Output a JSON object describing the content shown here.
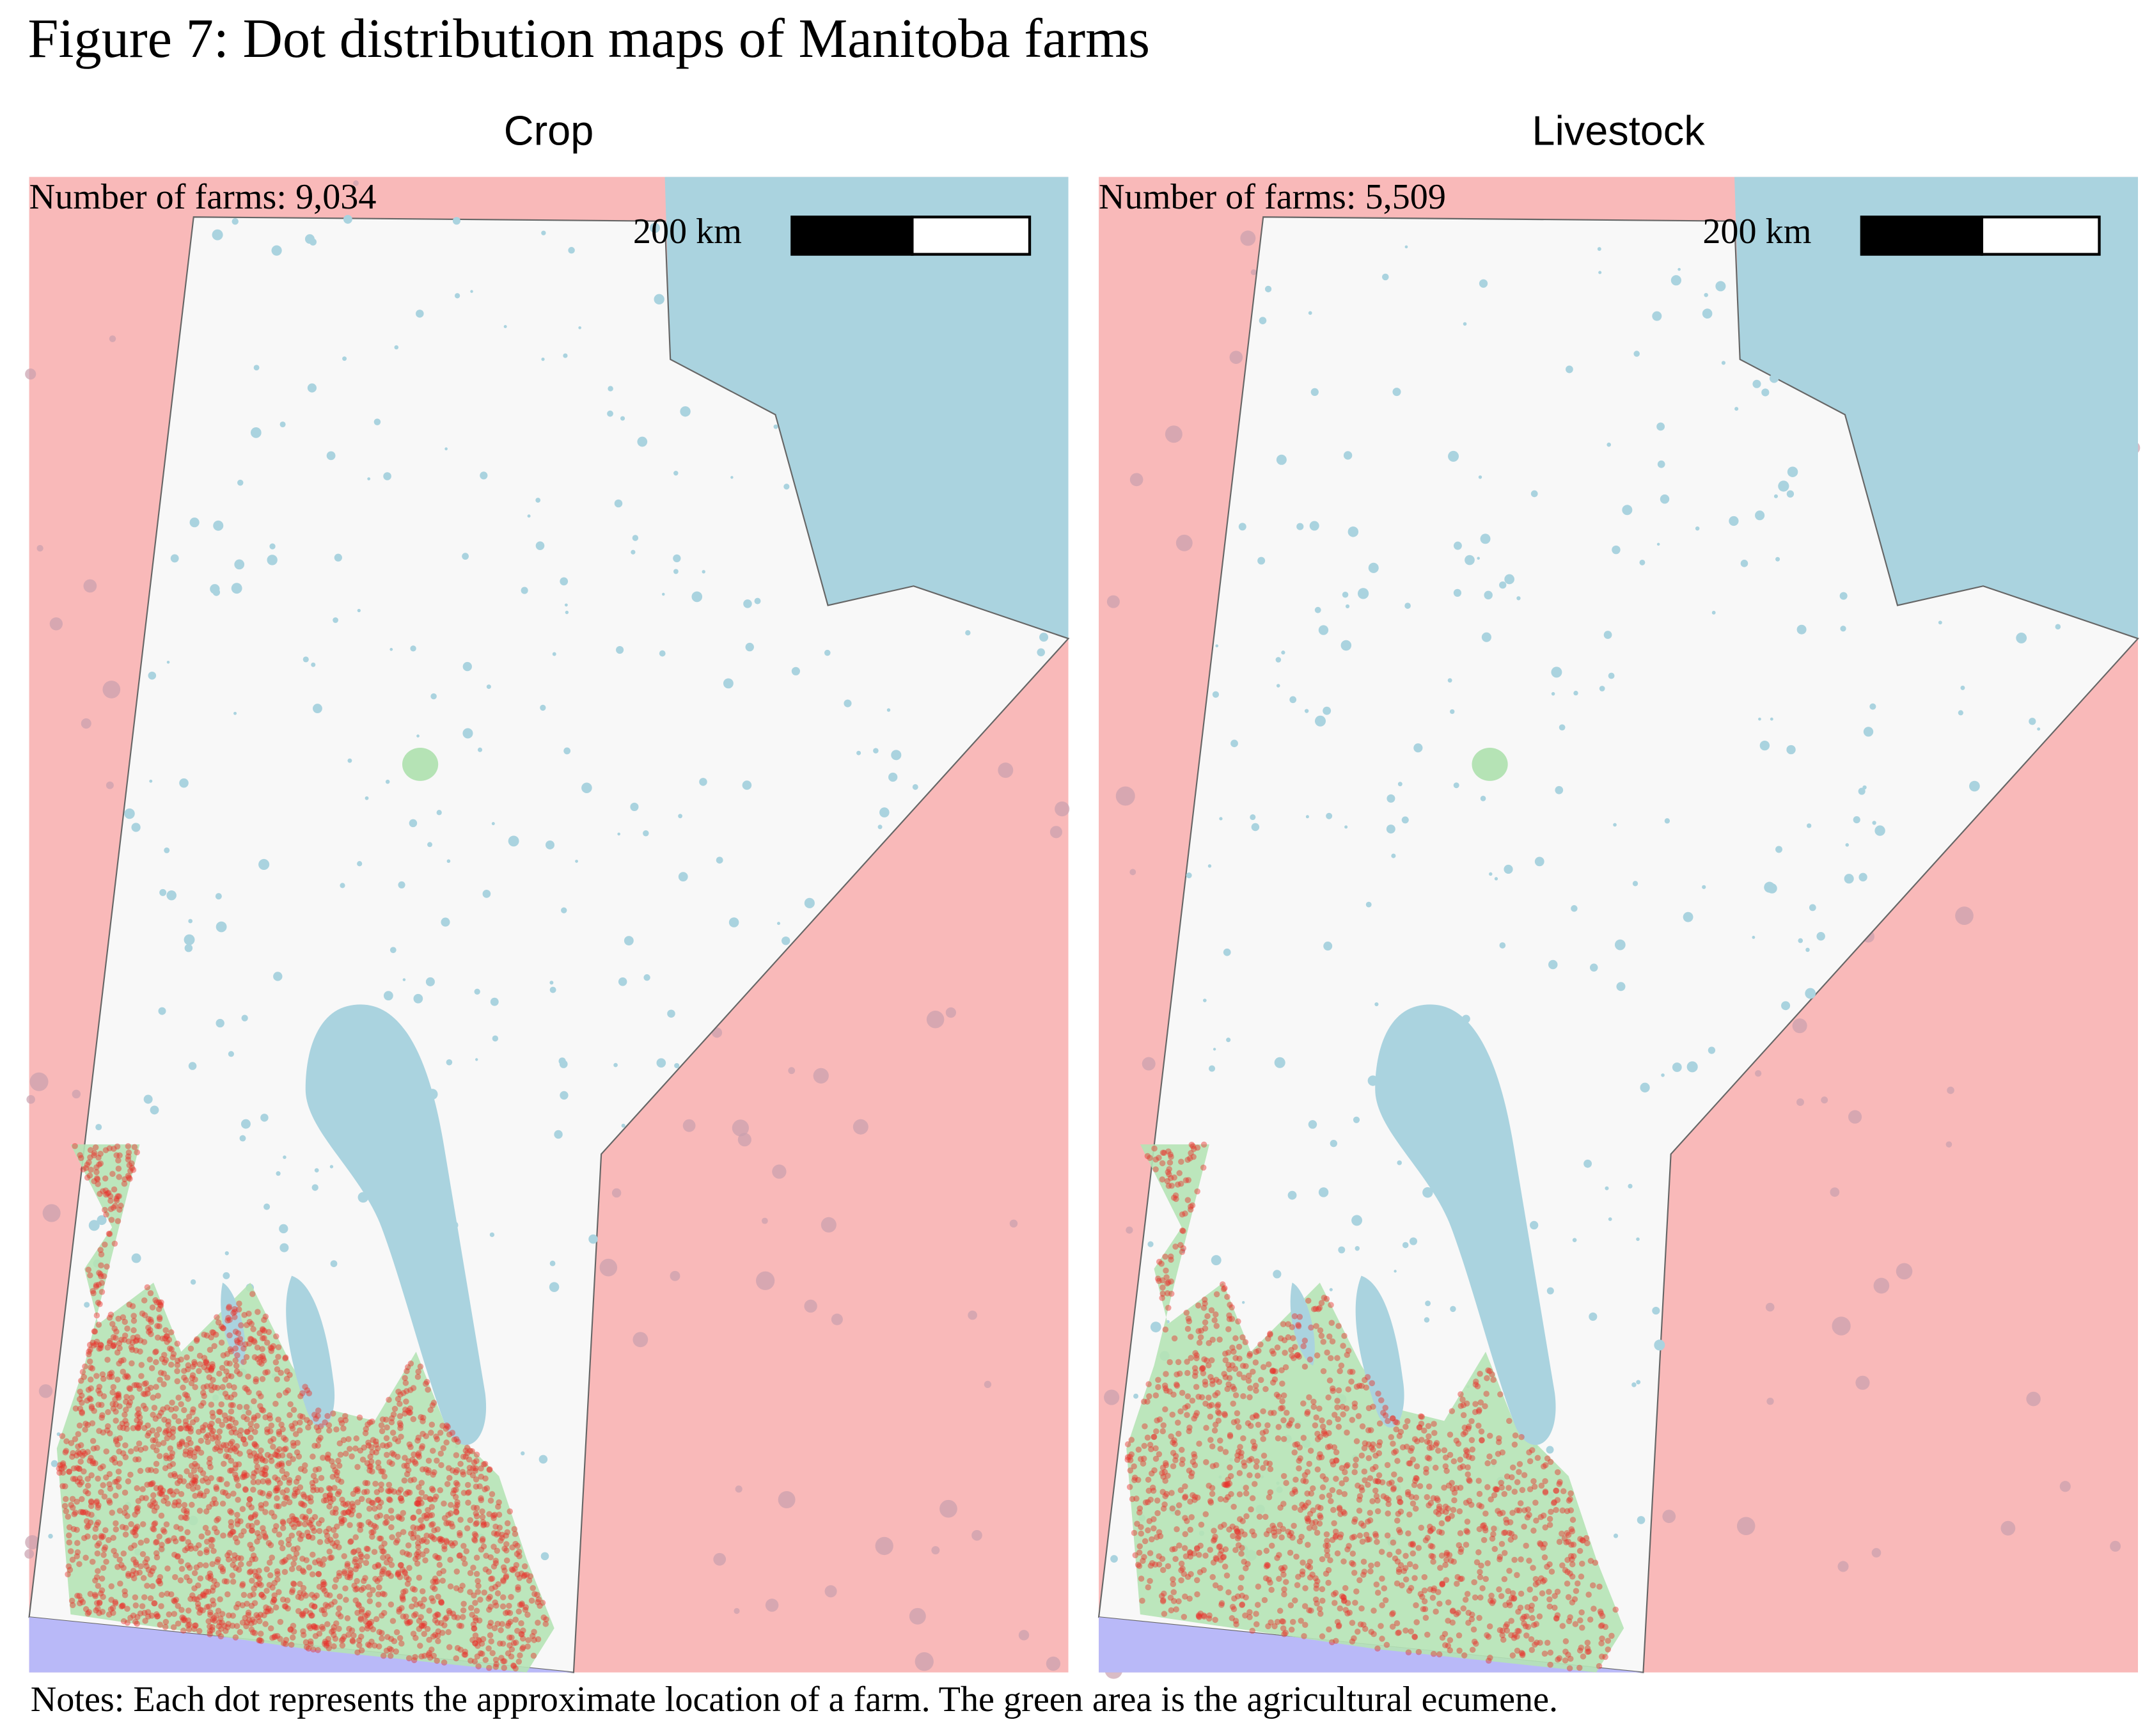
{
  "title": "Figure 7: Dot distribution maps of Manitoba farms",
  "panels": [
    {
      "title": "Crop",
      "count": "Number of farms: 9,034",
      "scale": "200 km"
    },
    {
      "title": "Livestock",
      "count": "Number of farms: 5,509",
      "scale": "200 km"
    }
  ],
  "notes": "Notes: Each dot represents the approximate location of a farm. The green area is the agricultural ecumene."
}
